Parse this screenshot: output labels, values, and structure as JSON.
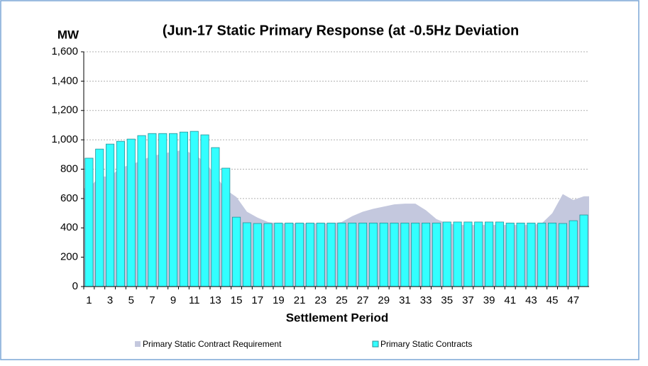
{
  "chart_data": {
    "type": "bar_area",
    "title": "(Jun-17 Static Primary Response (at -0.5Hz Deviation",
    "y_label": "MW",
    "x_label": "Settlement Period",
    "categories": [
      "1",
      null,
      "3",
      null,
      "5",
      null,
      "7",
      null,
      "9",
      null,
      "11",
      null,
      "13",
      null,
      "15",
      null,
      "17",
      null,
      "19",
      null,
      "21",
      null,
      "23",
      null,
      "25",
      null,
      "27",
      null,
      "29",
      null,
      "31",
      null,
      "33",
      null,
      "35",
      null,
      "37",
      null,
      "39",
      null,
      "41",
      null,
      "43",
      null,
      "45",
      null,
      "47",
      null
    ],
    "series": [
      {
        "name": "Primary Static Contract Requirement",
        "kind": "area",
        "color": "#c4c8de",
        "values": [
          670,
          750,
          750,
          810,
          830,
          860,
          890,
          905,
          920,
          930,
          900,
          850,
          760,
          660,
          610,
          510,
          470,
          440,
          430,
          430,
          430,
          430,
          430,
          430,
          440,
          480,
          510,
          530,
          545,
          560,
          565,
          565,
          520,
          460,
          430,
          420,
          420,
          420,
          420,
          420,
          420,
          420,
          420,
          430,
          500,
          630,
          590,
          615
        ]
      },
      {
        "name": "Primary Static Contracts",
        "kind": "bar",
        "color": "#33ffff",
        "values": [
          875,
          937,
          971,
          990,
          1005,
          1029,
          1043,
          1043,
          1043,
          1053,
          1058,
          1034,
          947,
          807,
          473,
          435,
          430,
          430,
          433,
          433,
          433,
          433,
          433,
          433,
          433,
          433,
          433,
          433,
          433,
          433,
          433,
          433,
          433,
          433,
          440,
          440,
          440,
          440,
          440,
          440,
          433,
          433,
          433,
          433,
          433,
          430,
          449,
          488
        ]
      }
    ],
    "ylim": [
      0,
      1600
    ],
    "yticks": [
      0,
      200,
      400,
      600,
      800,
      {
        "value": 1000,
        "label": "1,000"
      },
      {
        "value": 1200,
        "label": "1,200"
      },
      {
        "value": 1400,
        "label": "1,400"
      },
      {
        "value": 1600,
        "label": "1,600"
      }
    ],
    "grid": true,
    "legend": "bottom"
  }
}
